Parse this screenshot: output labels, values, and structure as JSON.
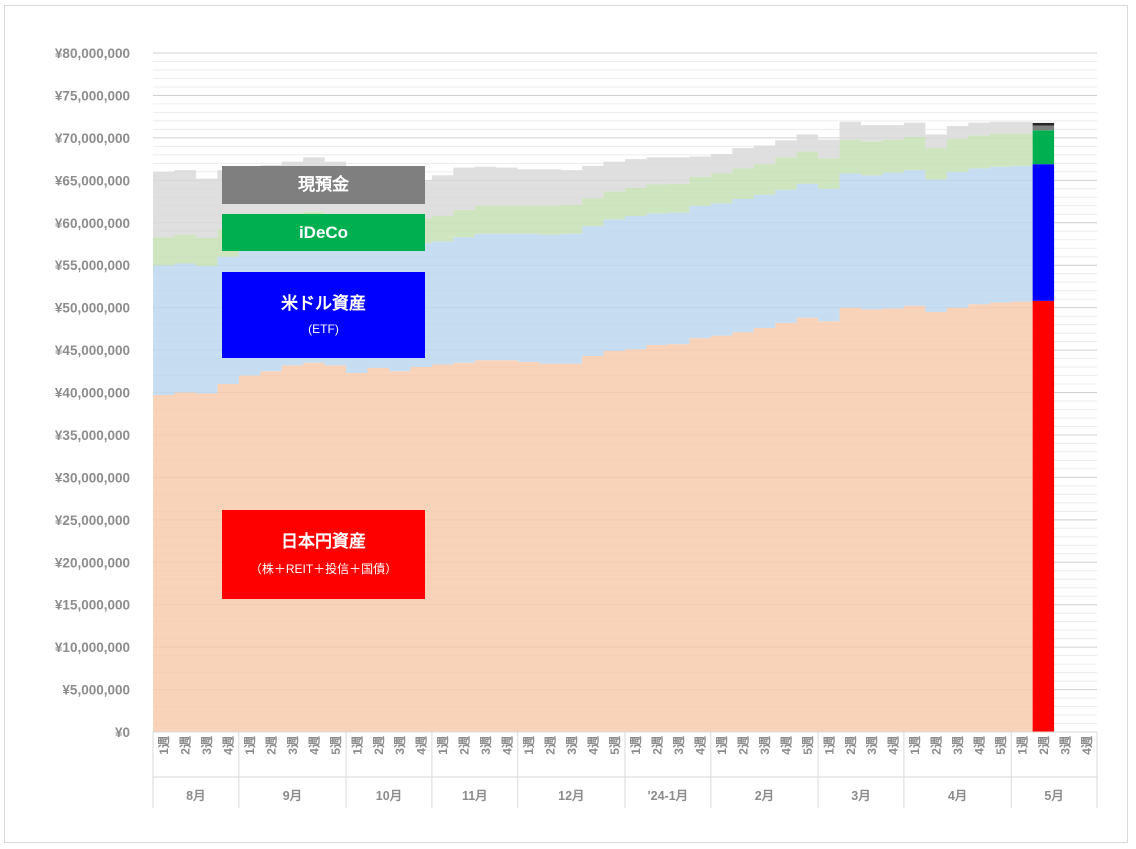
{
  "chart_data": {
    "type": "area",
    "stacked": true,
    "ylim": [
      0,
      80000000
    ],
    "y_ticks": [
      "¥0",
      "¥5,000,000",
      "¥10,000,000",
      "¥15,000,000",
      "¥20,000,000",
      "¥25,000,000",
      "¥30,000,000",
      "¥35,000,000",
      "¥40,000,000",
      "¥45,000,000",
      "¥50,000,000",
      "¥55,000,000",
      "¥60,000,000",
      "¥65,000,000",
      "¥70,000,000",
      "¥75,000,000",
      "¥80,000,000"
    ],
    "months": [
      {
        "label": "8月",
        "weeks": [
          "1週",
          "2週",
          "3週",
          "4週"
        ]
      },
      {
        "label": "9月",
        "weeks": [
          "1週",
          "2週",
          "3週",
          "4週",
          "5週"
        ]
      },
      {
        "label": "10月",
        "weeks": [
          "1週",
          "2週",
          "3週",
          "4週"
        ]
      },
      {
        "label": "11月",
        "weeks": [
          "1週",
          "2週",
          "3週",
          "4週"
        ]
      },
      {
        "label": "12月",
        "weeks": [
          "1週",
          "2週",
          "3週",
          "4週",
          "5週"
        ]
      },
      {
        "label": "'24-1月",
        "weeks": [
          "1週",
          "2週",
          "3週",
          "4週"
        ]
      },
      {
        "label": "2月",
        "weeks": [
          "1週",
          "2週",
          "3週",
          "4週",
          "5週"
        ]
      },
      {
        "label": "3月",
        "weeks": [
          "1週",
          "2週",
          "3週",
          "4週"
        ]
      },
      {
        "label": "4月",
        "weeks": [
          "1週",
          "2週",
          "3週",
          "4週",
          "5週"
        ]
      },
      {
        "label": "5月",
        "weeks": [
          "1週",
          "2週",
          "3週",
          "4週"
        ]
      }
    ],
    "current_index": 41,
    "series": [
      {
        "name": "日本円資産",
        "sub": "（株＋REIT＋投信＋国債）",
        "color": "#ff0000",
        "area_color": "#f8cbad",
        "values": [
          39700000,
          40000000,
          39900000,
          41000000,
          42000000,
          42500000,
          43200000,
          43500000,
          43200000,
          42300000,
          42900000,
          42500000,
          43000000,
          43300000,
          43500000,
          43800000,
          43800000,
          43600000,
          43400000,
          43400000,
          44300000,
          44900000,
          45100000,
          45600000,
          45700000,
          46400000,
          46700000,
          47100000,
          47600000,
          48200000,
          48800000,
          48400000,
          50000000,
          49800000,
          49900000,
          50200000,
          49500000,
          50000000,
          50400000,
          50600000,
          50700000,
          50800000
        ]
      },
      {
        "name": "米ドル資産",
        "sub": "(ETF)",
        "color": "#0000ff",
        "area_color": "#bdd7ee",
        "values": [
          15300000,
          15200000,
          15000000,
          15000000,
          15100000,
          15100000,
          15000000,
          14900000,
          14900000,
          14500000,
          14600000,
          14300000,
          14600000,
          14500000,
          14800000,
          14900000,
          14900000,
          15100000,
          15200000,
          15300000,
          15300000,
          15500000,
          15700000,
          15500000,
          15500000,
          15600000,
          15600000,
          15700000,
          15700000,
          15700000,
          15800000,
          15600000,
          15800000,
          15800000,
          16000000,
          16000000,
          15600000,
          16000000,
          16000000,
          16000000,
          16000000,
          16100000
        ]
      },
      {
        "name": "iDeCo",
        "color": "#00b050",
        "area_color": "#c6e0b4",
        "values": [
          3300000,
          3400000,
          3300000,
          3200000,
          3000000,
          3000000,
          2900000,
          2900000,
          2900000,
          2900000,
          2900000,
          2800000,
          2900000,
          3000000,
          3200000,
          3300000,
          3300000,
          3300000,
          3400000,
          3400000,
          3300000,
          3300000,
          3300000,
          3400000,
          3400000,
          3400000,
          3500000,
          3600000,
          3600000,
          3800000,
          3800000,
          3600000,
          4000000,
          4000000,
          3900000,
          3900000,
          3700000,
          3900000,
          3900000,
          3900000,
          3800000,
          4000000
        ]
      },
      {
        "name": "現預金",
        "color": "#7f7f7f",
        "area_color": "#d9d9d9",
        "values": [
          7700000,
          7600000,
          7000000,
          7000000,
          6200000,
          6200000,
          6100000,
          6400000,
          6200000,
          4600000,
          4400000,
          4500000,
          4500000,
          4800000,
          5000000,
          4600000,
          4500000,
          4300000,
          4300000,
          4100000,
          3800000,
          3500000,
          3400000,
          3200000,
          3100000,
          2400000,
          2300000,
          2400000,
          2200000,
          2000000,
          2000000,
          2200000,
          2100000,
          1900000,
          1700000,
          1700000,
          1600000,
          1500000,
          1500000,
          1400000,
          1400000,
          560000
        ]
      },
      {
        "name": "",
        "color": "#262626",
        "area_color": "#262626",
        "values": [
          0,
          0,
          0,
          0,
          0,
          0,
          0,
          0,
          0,
          0,
          0,
          0,
          0,
          0,
          0,
          0,
          0,
          0,
          0,
          0,
          0,
          0,
          0,
          0,
          0,
          0,
          0,
          0,
          0,
          0,
          0,
          0,
          0,
          0,
          0,
          0,
          0,
          0,
          0,
          0,
          0,
          300000
        ]
      }
    ]
  }
}
